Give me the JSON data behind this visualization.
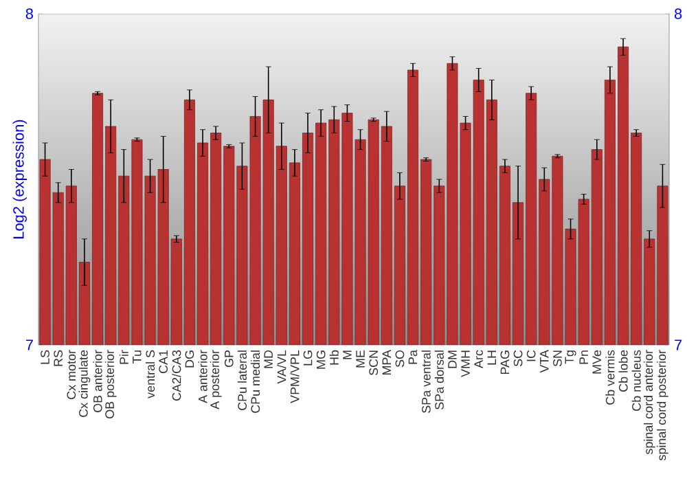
{
  "chart_data": {
    "type": "bar",
    "ylabel": "Log2 (expression)",
    "categories": [
      "LS",
      "RS",
      "Cx motor",
      "Cx cingulate",
      "OB anterior",
      "OB posterior",
      "Pir",
      "Tu",
      "ventral S",
      "CA1",
      "CA2/CA3",
      "DG",
      "A anterior",
      "A posterior",
      "GP",
      "CPu lateral",
      "CPu medial",
      "MD",
      "VA/VL",
      "VPM/VPL",
      "LG",
      "MG",
      "Hb",
      "M",
      "ME",
      "SCN",
      "MPA",
      "SO",
      "Pa",
      "SPa ventral",
      "SPa dorsal",
      "DM",
      "VMH",
      "Arc",
      "LH",
      "PAG",
      "SC",
      "IC",
      "VTA",
      "SN",
      "Tg",
      "Pn",
      "MVe",
      "Cb vermis",
      "Cb lobe",
      "Cb nucleus",
      "spinal cord anterior",
      "spinal cord posterior"
    ],
    "values": [
      7.56,
      7.46,
      7.48,
      7.25,
      7.76,
      7.66,
      7.51,
      7.62,
      7.51,
      7.53,
      7.32,
      7.74,
      7.61,
      7.64,
      7.6,
      7.54,
      7.69,
      7.74,
      7.6,
      7.55,
      7.64,
      7.67,
      7.68,
      7.7,
      7.62,
      7.68,
      7.66,
      7.48,
      7.83,
      7.56,
      7.48,
      7.85,
      7.67,
      7.8,
      7.74,
      7.54,
      7.43,
      7.76,
      7.5,
      7.57,
      7.35,
      7.44,
      7.59,
      7.8,
      7.9,
      7.64,
      7.32,
      7.48
    ],
    "errors": [
      0.05,
      0.03,
      0.05,
      0.07,
      0.005,
      0.08,
      0.08,
      0.005,
      0.05,
      0.1,
      0.01,
      0.03,
      0.04,
      0.02,
      0.005,
      0.07,
      0.06,
      0.1,
      0.07,
      0.04,
      0.06,
      0.04,
      0.04,
      0.025,
      0.03,
      0.005,
      0.045,
      0.04,
      0.02,
      0.005,
      0.02,
      0.02,
      0.02,
      0.035,
      0.06,
      0.02,
      0.11,
      0.02,
      0.035,
      0.005,
      0.03,
      0.015,
      0.03,
      0.04,
      0.025,
      0.01,
      0.025,
      0.065
    ],
    "color": "#b83232",
    "ylim": [
      7,
      8
    ],
    "yticks": [
      7,
      8
    ],
    "y2lim": [
      7,
      8
    ],
    "y2ticks": [
      7,
      8
    ]
  }
}
